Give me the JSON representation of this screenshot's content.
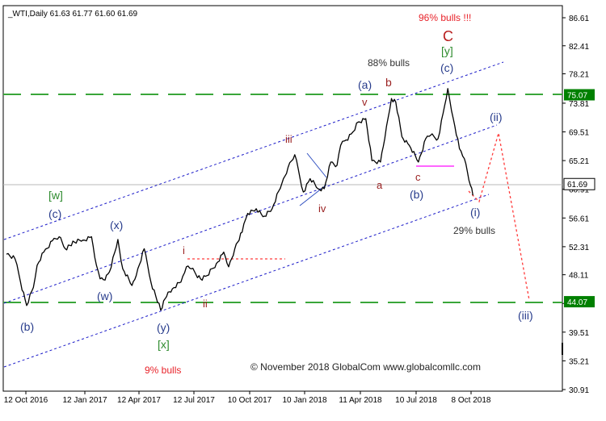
{
  "chart_data": {
    "type": "line",
    "title": "_WTI,Daily  61.63 61.77 61.60 61.69",
    "copyright": "© November 2018 GlobalCom www.globalcomllc.com",
    "x_tick_labels": [
      "12 Oct 2016",
      "12 Jan 2017",
      "12 Apr 2017",
      "12 Jul 2017",
      "10 Oct 2017",
      "10 Jan 2018",
      "11 Apr 2018",
      "10 Jul 2018",
      "8 Oct 2018"
    ],
    "y_ticks": [
      86.61,
      82.41,
      78.21,
      73.81,
      69.51,
      65.21,
      60.91,
      56.61,
      52.31,
      48.11,
      43.81,
      39.51,
      35.21,
      30.91
    ],
    "ylim": [
      30.91,
      86.61
    ],
    "price_markers": [
      {
        "label": "75.07",
        "value": 75.07,
        "bg": "#008000"
      },
      {
        "label": "61.69",
        "value": 61.69,
        "bg": "#ffffff"
      },
      {
        "label": "44.07",
        "value": 44.07,
        "bg": "#008000"
      }
    ],
    "series": [
      {
        "x": [
          "2016-10-12",
          "2016-10-26",
          "2016-11-04",
          "2016-11-14",
          "2016-11-25",
          "2016-12-01",
          "2016-12-12",
          "2016-12-26",
          "2017-01-06",
          "2017-01-16",
          "2017-01-31",
          "2017-02-14",
          "2017-02-28",
          "2017-03-08",
          "2017-03-14",
          "2017-03-22",
          "2017-03-29",
          "2017-04-07",
          "2017-04-12",
          "2017-04-20",
          "2017-05-05",
          "2017-05-12",
          "2017-05-25",
          "2017-06-05",
          "2017-06-21",
          "2017-07-03",
          "2017-07-10",
          "2017-07-24",
          "2017-08-02",
          "2017-08-10",
          "2017-08-25",
          "2017-09-05",
          "2017-09-20",
          "2017-10-02",
          "2017-10-10",
          "2017-10-20",
          "2017-11-01",
          "2017-11-10",
          "2017-11-24",
          "2017-12-05",
          "2017-12-20",
          "2018-01-05",
          "2018-01-15",
          "2018-01-26",
          "2018-02-09",
          "2018-02-20",
          "2018-03-05",
          "2018-03-15",
          "2018-03-26",
          "2018-04-05",
          "2018-04-11",
          "2018-04-20",
          "2018-05-01",
          "2018-05-10",
          "2018-05-22",
          "2018-06-01",
          "2018-06-15",
          "2018-06-22",
          "2018-07-03",
          "2018-07-10",
          "2018-07-20",
          "2018-08-01",
          "2018-08-16",
          "2018-08-28",
          "2018-09-05",
          "2018-09-17",
          "2018-09-28",
          "2018-10-03",
          "2018-10-12",
          "2018-10-22",
          "2018-10-30",
          "2018-11-09",
          "2018-11-13"
        ],
        "values": [
          51.2,
          50.5,
          47.0,
          43.5,
          46.2,
          49.5,
          51.5,
          53.2,
          53.8,
          52.0,
          53.0,
          53.3,
          53.8,
          49.5,
          47.5,
          47.3,
          48.5,
          51.5,
          53.4,
          49.0,
          46.5,
          48.0,
          52.0,
          47.0,
          42.8,
          45.5,
          46.0,
          47.0,
          49.3,
          49.0,
          47.5,
          48.0,
          49.8,
          51.5,
          49.3,
          52.0,
          54.5,
          57.3,
          58.0,
          56.8,
          58.0,
          61.8,
          64.2,
          66.1,
          60.5,
          62.5,
          61.0,
          61.0,
          65.0,
          64.5,
          67.5,
          68.3,
          69.5,
          71.0,
          71.5,
          65.2,
          65.0,
          68.5,
          74.5,
          74.0,
          68.8,
          67.5,
          65.0,
          68.5,
          69.0,
          68.5,
          73.5,
          76.0,
          71.5,
          67.0,
          65.5,
          61.5,
          60.0
        ]
      }
    ],
    "annotations": {
      "w_green": "[w]",
      "c_blue_left": "(c)",
      "b_blue_left": "(b)",
      "x_blue": "(x)",
      "w_blue": "(w)",
      "y_blue": "(y)",
      "x_green": "[x]",
      "i_red": "i",
      "ii_red": "ii",
      "iii_red": "iii",
      "iv_red": "iv",
      "v_red": "v",
      "a_blue_top": "(a)",
      "b_red": "b",
      "a_red": "a",
      "c_red": "c",
      "b_blue_mid": "(b)",
      "C_big": "C",
      "y_green": "[y]",
      "c_blue_top": "(c)",
      "i_blue": "(i)",
      "ii_blue": "(ii)",
      "iii_blue": "(iii)",
      "bulls_96": "96% bulls !!!",
      "bulls_88": "88% bulls",
      "bulls_29": "29% bulls",
      "bulls_9": "9% bulls"
    },
    "colors": {
      "price": "#000000",
      "channel": "#1c1cc9",
      "green_line": "#3aa63a",
      "red_text": "#e8232a",
      "dark_red": "#9b2323",
      "navy_text": "#283c8c",
      "green_text": "#2e8b2e",
      "magenta": "#ff33ff",
      "forecast": "#ff3a3a"
    }
  }
}
